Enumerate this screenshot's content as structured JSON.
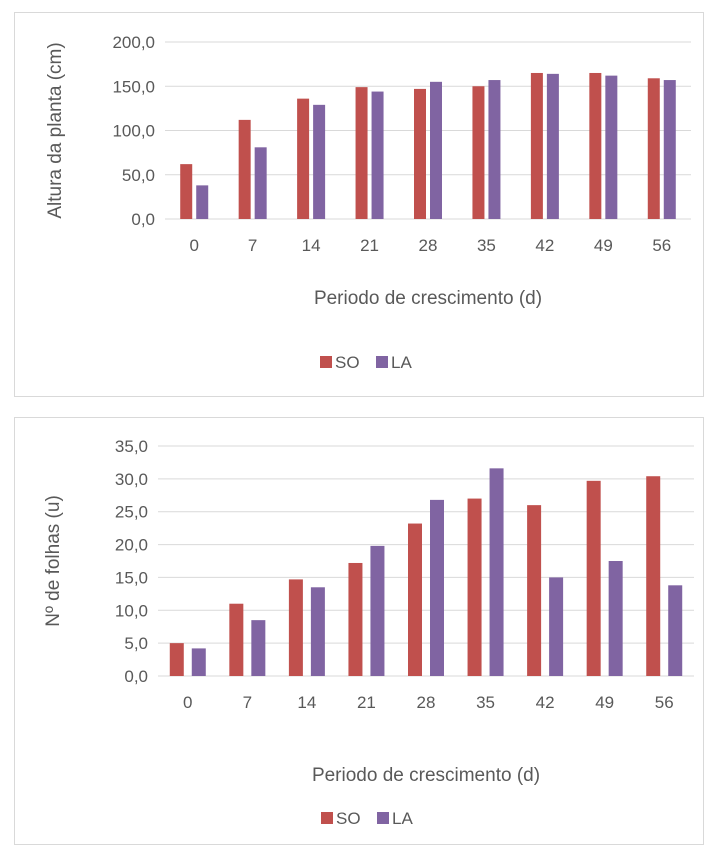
{
  "colors": {
    "SO": "#c0504d",
    "LA": "#8064a2",
    "grid": "#d9d9d9",
    "text": "#595959"
  },
  "chart_data": [
    {
      "type": "bar",
      "categories": [
        "0",
        "7",
        "14",
        "21",
        "28",
        "35",
        "42",
        "49",
        "56"
      ],
      "series": [
        {
          "name": "SO",
          "values": [
            62,
            112,
            136,
            149,
            147,
            150,
            165,
            165,
            159
          ]
        },
        {
          "name": "LA",
          "values": [
            38,
            81,
            129,
            144,
            155,
            157,
            164,
            162,
            157
          ]
        }
      ],
      "title": "",
      "xlabel": "Periodo de crescimento (d)",
      "ylabel": "Altura da planta (cm)",
      "ylim": [
        0,
        200
      ],
      "yticks": [
        "0,0",
        "50,0",
        "100,0",
        "150,0",
        "200,0"
      ],
      "grid": true,
      "legend": "bottom"
    },
    {
      "type": "bar",
      "categories": [
        "0",
        "7",
        "14",
        "21",
        "28",
        "35",
        "42",
        "49",
        "56"
      ],
      "series": [
        {
          "name": "SO",
          "values": [
            5.0,
            11.0,
            14.7,
            17.2,
            23.2,
            27.0,
            26.0,
            29.7,
            30.4
          ]
        },
        {
          "name": "LA",
          "values": [
            4.2,
            8.5,
            13.5,
            19.8,
            26.8,
            31.6,
            15.0,
            17.5,
            13.8
          ]
        }
      ],
      "title": "",
      "xlabel": "Periodo de crescimento (d)",
      "ylabel": "Nº  de folhas (u)",
      "ylim": [
        0,
        35
      ],
      "yticks": [
        "0,0",
        "5,0",
        "10,0",
        "15,0",
        "20,0",
        "25,0",
        "30,0",
        "35,0"
      ],
      "grid": true,
      "legend": "bottom"
    }
  ]
}
